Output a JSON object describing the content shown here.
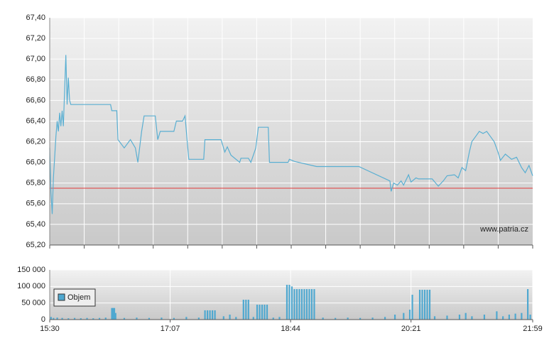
{
  "chart_data": [
    {
      "type": "line",
      "annotation": "www.patria.cz",
      "x": [
        "15:30",
        "15:31",
        "15:32",
        "15:33",
        "15:35",
        "15:36",
        "15:37",
        "15:38",
        "15:39",
        "15:40",
        "15:41",
        "15:42",
        "15:43",
        "15:44",
        "15:45",
        "15:46",
        "15:47",
        "16:19",
        "16:20",
        "16:24",
        "16:25",
        "16:30",
        "16:35",
        "16:39",
        "16:41",
        "16:44",
        "16:46",
        "16:55",
        "16:57",
        "16:59",
        "17:00",
        "17:10",
        "17:12",
        "17:17",
        "17:19",
        "17:22",
        "17:34",
        "17:35",
        "17:48",
        "17:49",
        "17:51",
        "17:53",
        "17:56",
        "18:03",
        "18:04",
        "18:10",
        "18:12",
        "18:16",
        "18:18",
        "18:26",
        "18:27",
        "18:42",
        "18:43",
        "18:47",
        "19:05",
        "19:39",
        "20:04",
        "20:05",
        "20:07",
        "20:10",
        "20:13",
        "20:15",
        "20:19",
        "20:21",
        "20:25",
        "20:27",
        "20:38",
        "20:43",
        "20:47",
        "20:50",
        "20:56",
        "20:59",
        "21:02",
        "21:05",
        "21:08",
        "21:10",
        "21:13",
        "21:16",
        "21:19",
        "21:22",
        "21:25",
        "21:28",
        "21:31",
        "21:33",
        "21:37",
        "21:42",
        "21:46",
        "21:50",
        "21:53",
        "21:56",
        "21:59"
      ],
      "values": [
        66.14,
        65.72,
        65.5,
        65.85,
        66.25,
        66.4,
        66.3,
        66.48,
        66.35,
        66.5,
        66.35,
        66.7,
        67.04,
        66.56,
        66.82,
        66.6,
        66.56,
        66.56,
        66.5,
        66.5,
        66.22,
        66.14,
        66.22,
        66.14,
        66.0,
        66.3,
        66.45,
        66.45,
        66.22,
        66.3,
        66.3,
        66.3,
        66.4,
        66.4,
        66.45,
        66.03,
        66.03,
        66.22,
        66.22,
        66.18,
        66.1,
        66.15,
        66.07,
        66.0,
        66.04,
        66.04,
        66.0,
        66.14,
        66.34,
        66.34,
        66.0,
        66.0,
        66.03,
        66.01,
        65.96,
        65.96,
        65.82,
        65.72,
        65.8,
        65.78,
        65.82,
        65.78,
        65.88,
        65.81,
        65.85,
        65.84,
        65.84,
        65.77,
        65.82,
        65.87,
        65.88,
        65.85,
        65.95,
        65.92,
        66.1,
        66.2,
        66.25,
        66.3,
        66.28,
        66.3,
        66.25,
        66.2,
        66.1,
        66.02,
        66.08,
        66.03,
        66.05,
        65.95,
        65.9,
        65.97,
        65.87
      ],
      "color": "#5aafd2",
      "reference_line": 65.75,
      "reference_color": "#e03a3a",
      "xlim": [
        "15:30",
        "21:59"
      ],
      "ylim": [
        65.2,
        67.4
      ],
      "yticks": [
        {
          "value": 65.2,
          "label": "65,20"
        },
        {
          "value": 65.4,
          "label": "65,40"
        },
        {
          "value": 65.6,
          "label": "65,60"
        },
        {
          "value": 65.8,
          "label": "65,80"
        },
        {
          "value": 66.0,
          "label": "66,00"
        },
        {
          "value": 66.2,
          "label": "66,20"
        },
        {
          "value": 66.4,
          "label": "66,40"
        },
        {
          "value": 66.6,
          "label": "66,60"
        },
        {
          "value": 66.8,
          "label": "66,80"
        },
        {
          "value": 67.0,
          "label": "67,00"
        },
        {
          "value": 67.2,
          "label": "67,20"
        },
        {
          "value": 67.4,
          "label": "67,40"
        }
      ],
      "grid": true
    },
    {
      "type": "bar",
      "x": [
        "15:31",
        "15:33",
        "15:36",
        "15:40",
        "15:45",
        "15:50",
        "15:55",
        "16:00",
        "16:05",
        "16:10",
        "16:15",
        "16:20",
        "16:21",
        "16:22",
        "16:23",
        "16:30",
        "16:40",
        "16:50",
        "17:00",
        "17:10",
        "17:20",
        "17:30",
        "17:35",
        "17:37",
        "17:39",
        "17:41",
        "17:43",
        "17:50",
        "17:55",
        "18:00",
        "18:06",
        "18:08",
        "18:10",
        "18:14",
        "18:17",
        "18:19",
        "18:21",
        "18:23",
        "18:25",
        "18:30",
        "18:35",
        "18:41",
        "18:43",
        "18:45",
        "18:47",
        "18:49",
        "18:51",
        "18:53",
        "18:55",
        "18:57",
        "18:59",
        "19:01",
        "19:03",
        "19:10",
        "19:20",
        "19:30",
        "19:40",
        "19:50",
        "20:00",
        "20:08",
        "20:15",
        "20:20",
        "20:22",
        "20:28",
        "20:30",
        "20:32",
        "20:34",
        "20:36",
        "20:40",
        "20:50",
        "21:00",
        "21:05",
        "21:10",
        "21:20",
        "21:30",
        "21:35",
        "21:40",
        "21:45",
        "21:50",
        "21:55",
        "21:57"
      ],
      "series": [
        {
          "name": "Objem",
          "color": "#4fa8d0",
          "values": [
            8000,
            5000,
            6000,
            5000,
            4000,
            5000,
            4000,
            5000,
            4000,
            5000,
            6000,
            35000,
            35000,
            35000,
            20000,
            5000,
            6000,
            5000,
            6000,
            5000,
            8000,
            6000,
            28000,
            28000,
            28000,
            28000,
            28000,
            10000,
            15000,
            8000,
            60000,
            60000,
            60000,
            8000,
            45000,
            45000,
            45000,
            45000,
            45000,
            6000,
            8000,
            105000,
            105000,
            100000,
            92000,
            92000,
            92000,
            92000,
            92000,
            92000,
            92000,
            92000,
            92000,
            6000,
            5000,
            6000,
            5000,
            6000,
            8000,
            15000,
            20000,
            30000,
            75000,
            90000,
            90000,
            90000,
            90000,
            90000,
            10000,
            12000,
            15000,
            20000,
            10000,
            15000,
            25000,
            10000,
            15000,
            18000,
            20000,
            92000,
            15000
          ]
        }
      ],
      "xlim": [
        "15:30",
        "21:59"
      ],
      "ylim": [
        0,
        150000
      ],
      "yticks": [
        0,
        {
          "value": 50000,
          "label": "50 000"
        },
        {
          "value": 100000,
          "label": "100 000"
        },
        {
          "value": 150000,
          "label": "150 000"
        }
      ],
      "xticks": [
        "15:30",
        "17:07",
        "18:44",
        "20:21",
        "21:59"
      ],
      "grid": true
    }
  ]
}
